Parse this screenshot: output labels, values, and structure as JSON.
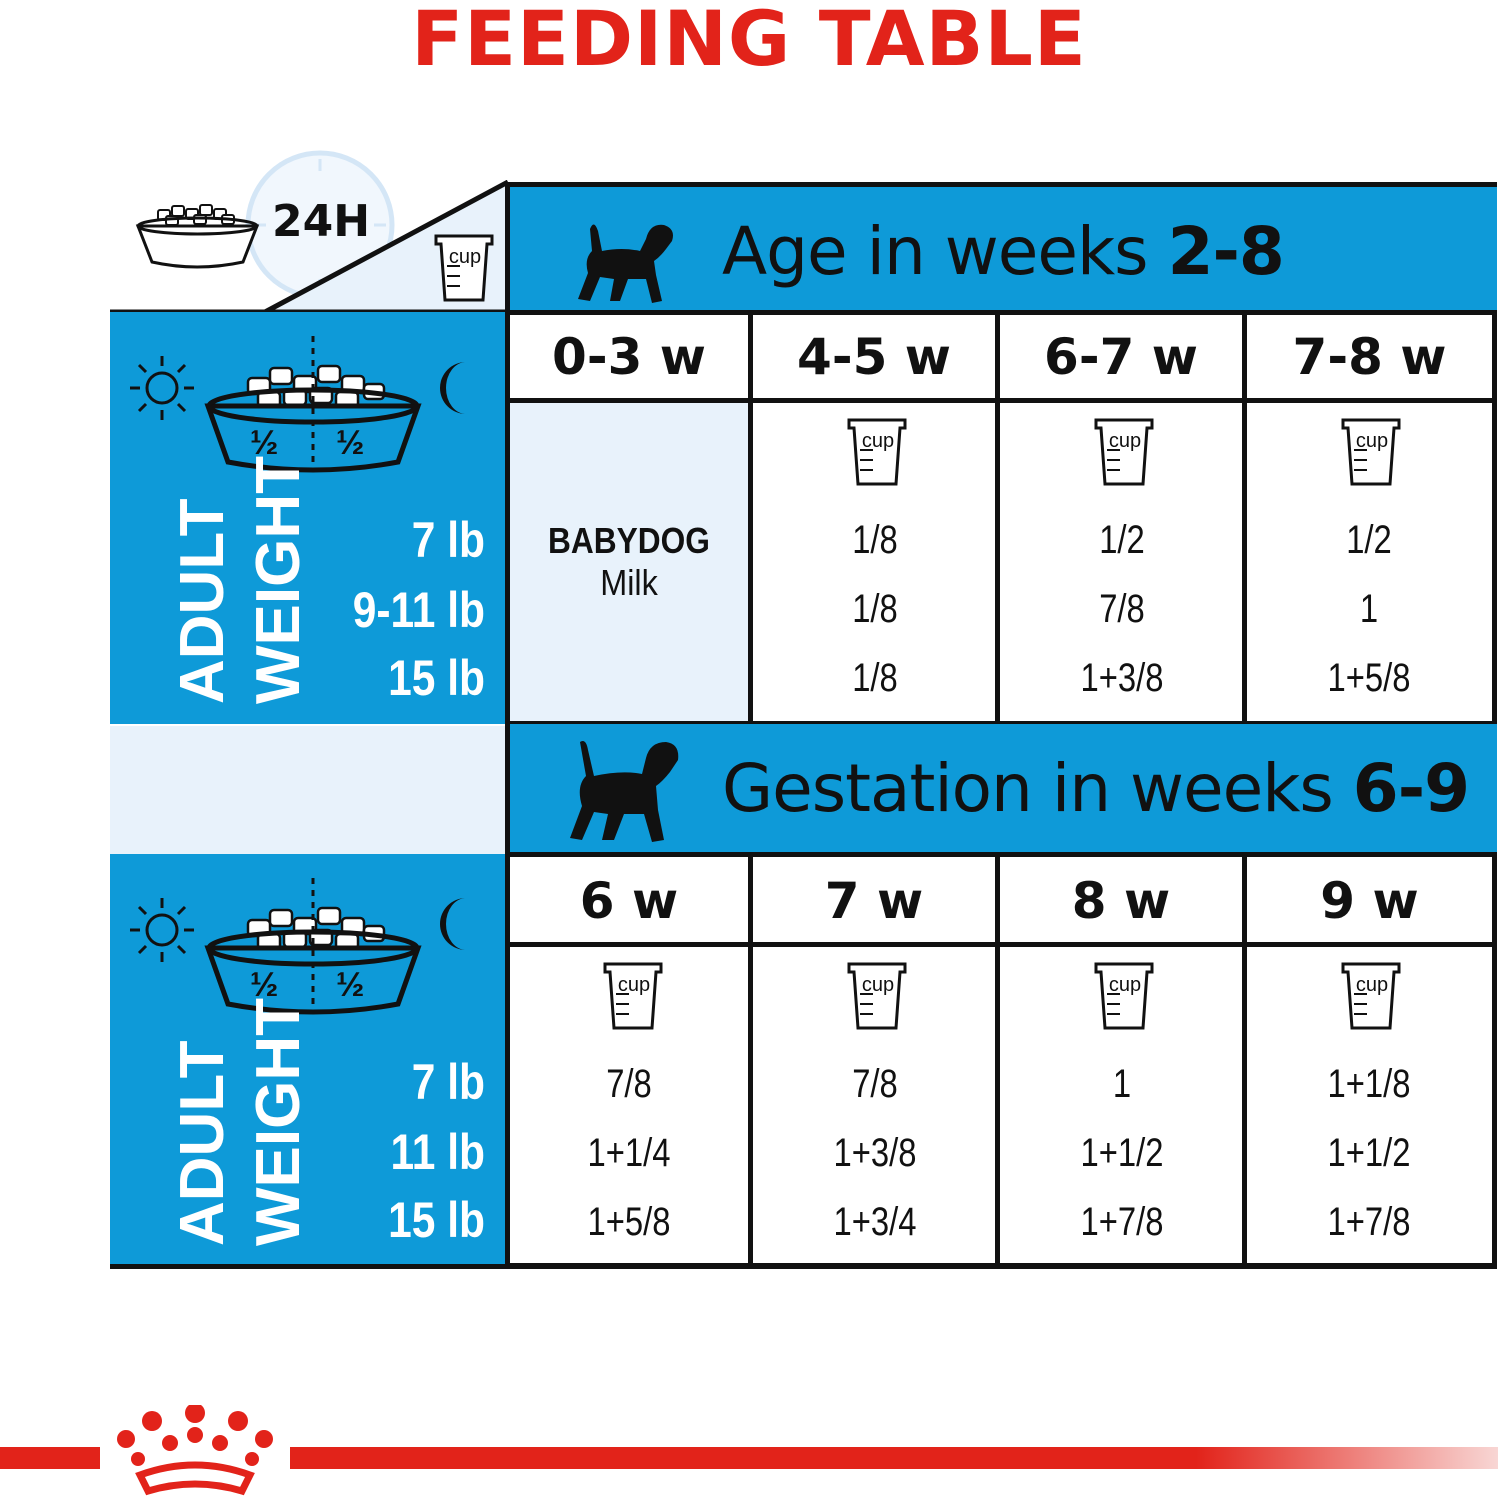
{
  "title": "FEEDING TABLE",
  "legend": {
    "duration": "24H",
    "cup_label": "cup"
  },
  "sections": [
    {
      "header": {
        "text": "Age in weeks ",
        "bold": "2-8"
      },
      "columns": [
        "0-3 w",
        "4-5 w",
        "6-7 w",
        "7-8 w"
      ],
      "side": {
        "label_line1": "ADULT",
        "label_line2": "WEIGHT",
        "weights": [
          "7 lb",
          "9-11 lb",
          "15 lb"
        ],
        "half_left": "½",
        "half_right": "½"
      },
      "first_column_text": {
        "line1": "BABYDOG",
        "line2": "Milk"
      },
      "rows": [
        [
          "1/8",
          "1/2",
          "1/2"
        ],
        [
          "1/8",
          "7/8",
          "1"
        ],
        [
          "1/8",
          "1+3/8",
          "1+5/8"
        ]
      ]
    },
    {
      "header": {
        "text": "Gestation in weeks ",
        "bold": "6-9"
      },
      "columns": [
        "6 w",
        "7 w",
        "8 w",
        "9 w"
      ],
      "side": {
        "label_line1": "ADULT",
        "label_line2": "WEIGHT",
        "weights": [
          "7 lb",
          "11 lb",
          "15 lb"
        ],
        "half_left": "½",
        "half_right": "½"
      },
      "rows": [
        [
          "7/8",
          "7/8",
          "1",
          "1+1/8"
        ],
        [
          "1+1/4",
          "1+3/8",
          "1+1/2",
          "1+1/2"
        ],
        [
          "1+5/8",
          "1+3/4",
          "1+7/8",
          "1+7/8"
        ]
      ]
    }
  ],
  "colors": {
    "title_red": "#e2231a",
    "table_blue": "#0e9ad8",
    "pale_blue": "#e8f2fb"
  },
  "icons": [
    "food-bowl-icon",
    "clock-icon",
    "measuring-cup-icon",
    "sun-icon",
    "moon-icon",
    "puppy-icon",
    "dog-icon",
    "royal-canin-crown-logo"
  ]
}
